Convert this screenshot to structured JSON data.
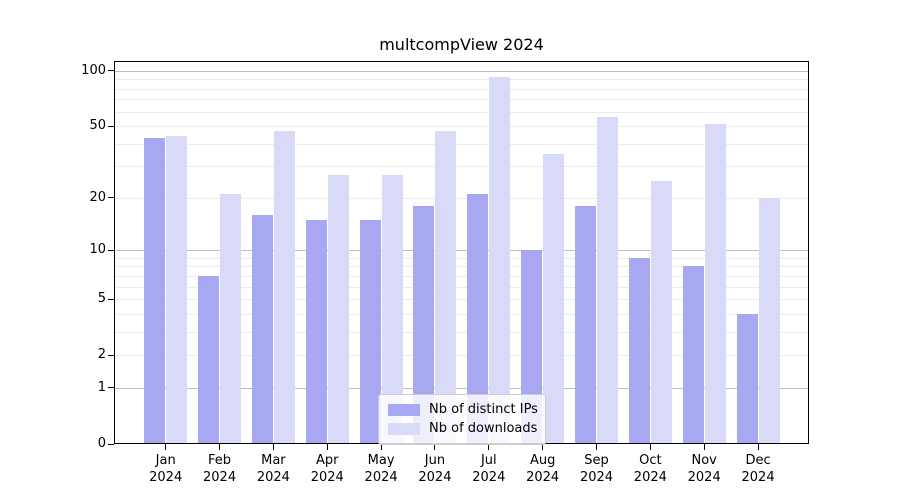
{
  "title": "multcompView 2024",
  "chart_data": {
    "type": "bar",
    "title": "multcompView 2024",
    "categories": [
      "Jan",
      "Feb",
      "Mar",
      "Apr",
      "May",
      "Jun",
      "Jul",
      "Aug",
      "Sep",
      "Oct",
      "Nov",
      "Dec"
    ],
    "year_label": "2024",
    "series": [
      {
        "name": "Nb of distinct IPs",
        "color": "#a8a8f2",
        "values": [
          43,
          7,
          16,
          15,
          15,
          18,
          21,
          10,
          18,
          9,
          8,
          4
        ]
      },
      {
        "name": "Nb of downloads",
        "color": "#d9d9f8",
        "values": [
          44,
          21,
          47,
          27,
          27,
          47,
          92,
          35,
          56,
          25,
          51,
          20
        ]
      }
    ],
    "y_scale": "log1p",
    "y_axis_ticks": [
      0,
      1,
      2,
      5,
      10,
      20,
      50,
      100
    ],
    "y_major_gridlines": [
      1,
      10,
      100
    ],
    "y_minor_gridlines": [
      2,
      3,
      4,
      5,
      6,
      7,
      8,
      9,
      20,
      30,
      40,
      50,
      60,
      70,
      80,
      90
    ],
    "ylim": [
      0,
      113
    ],
    "grid": true,
    "legend_position": "bottom-center"
  },
  "colors": {
    "bar_distinct_ips": "#a8a8f2",
    "bar_downloads": "#d9d9f8",
    "grid_major": "#bfbfbf",
    "grid_minor": "#ececec",
    "frame": "#000000",
    "background": "#ffffff"
  }
}
